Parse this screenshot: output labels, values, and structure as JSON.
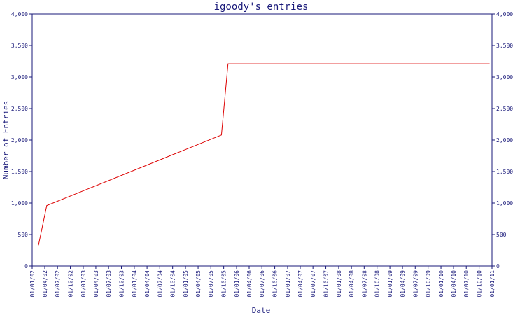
{
  "chart_data": {
    "type": "line",
    "title": "igoody's entries",
    "xlabel": "Date",
    "ylabel": "Number of Entries",
    "ylim": [
      0,
      4000
    ],
    "yticks": [
      0,
      500,
      1000,
      1500,
      2000,
      2500,
      3000,
      3500,
      4000
    ],
    "ytick_labels": [
      "0",
      "500",
      "1,000",
      "1,500",
      "2,000",
      "2,500",
      "3,000",
      "3,500",
      "4,000"
    ],
    "xlim": [
      "2002-01-01",
      "2011-01-01"
    ],
    "xtick_labels": [
      "01/01/02",
      "01/04/02",
      "01/07/02",
      "01/10/02",
      "01/01/03",
      "01/04/03",
      "01/07/03",
      "01/10/03",
      "01/01/04",
      "01/04/04",
      "01/07/04",
      "01/10/04",
      "01/01/05",
      "01/04/05",
      "01/07/05",
      "01/10/05",
      "01/01/06",
      "01/04/06",
      "01/07/06",
      "01/10/06",
      "01/01/07",
      "01/04/07",
      "01/07/07",
      "01/10/07",
      "01/01/08",
      "01/04/08",
      "01/07/08",
      "01/10/08",
      "01/01/09",
      "01/04/09",
      "01/07/09",
      "01/10/09",
      "01/01/10",
      "01/04/10",
      "01/07/10",
      "01/10/10",
      "01/01/11"
    ],
    "grid": false,
    "series": [
      {
        "x": [
          "2002-02-15",
          "2002-04-15",
          "2005-09-15",
          "2005-11-01",
          "2010-12-15"
        ],
        "y": [
          330,
          960,
          2080,
          3210,
          3210
        ]
      }
    ],
    "colors": {
      "axis": "#1a1a7a",
      "line": "#dd0000"
    }
  }
}
